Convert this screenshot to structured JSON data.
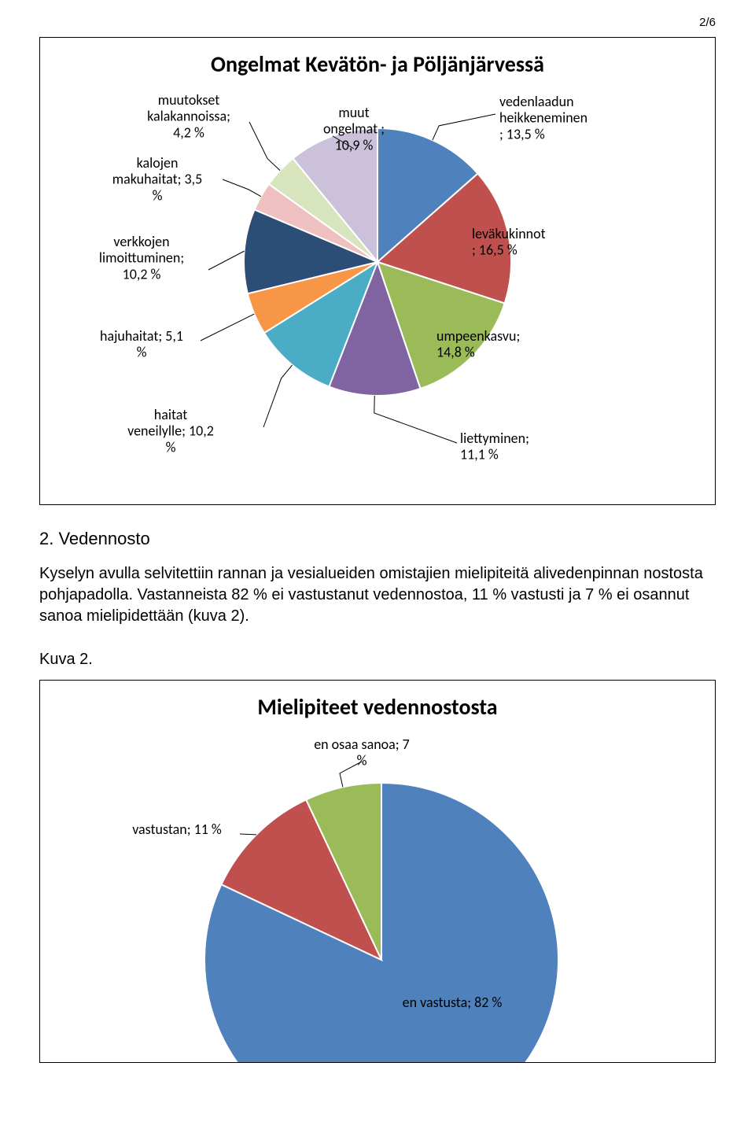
{
  "page_number": "2/6",
  "chart1": {
    "type": "pie",
    "title": "Ongelmat Kevätön- ja Pöljänjärvessä",
    "title_fontsize": 28,
    "label_fontsize": 18,
    "background_color": "#ffffff",
    "border_color": "#000000",
    "slices": [
      {
        "key": "vedenlaadun_heikkeneminen",
        "label_lines": [
          "vedenlaadun",
          "heikkeneminen",
          "; 13,5 %"
        ],
        "value": 13.5,
        "color": "#4f81bd"
      },
      {
        "key": "levakukinnot",
        "label_lines": [
          "leväkukinnot",
          "; 16,5 %"
        ],
        "value": 16.5,
        "color": "#c0504d"
      },
      {
        "key": "umpeenkasvu",
        "label_lines": [
          "umpeenkasvu;",
          "14,8 %"
        ],
        "value": 14.8,
        "color": "#9bbb59"
      },
      {
        "key": "liettyminen",
        "label_lines": [
          "liettyminen;",
          "11,1 %"
        ],
        "value": 11.1,
        "color": "#8064a2"
      },
      {
        "key": "haitat_veneilylle",
        "label_lines": [
          "haitat",
          "veneilylle; 10,2",
          "%"
        ],
        "value": 10.2,
        "color": "#4bacc6"
      },
      {
        "key": "hajuhaitat",
        "label_lines": [
          "hajuhaitat; 5,1",
          "%"
        ],
        "value": 5.1,
        "color": "#f79646"
      },
      {
        "key": "verkkojen_limoittuminen",
        "label_lines": [
          "verkkojen",
          "limoittuminen;",
          "10,2 %"
        ],
        "value": 10.2,
        "color": "#2c4d75"
      },
      {
        "key": "kalojen_makuhaitat",
        "label_lines": [
          "kalojen",
          "makuhaitat; 3,5",
          "%"
        ],
        "value": 3.5,
        "color": "#eec0bf"
      },
      {
        "key": "muutokset_kalakannoissa",
        "label_lines": [
          "muutokset",
          "kalakannoissa;",
          "4,2 %"
        ],
        "value": 4.2,
        "color": "#d7e4bd"
      },
      {
        "key": "muut_ongelmat",
        "label_lines": [
          "muut",
          "ongelmat ;",
          "10,9 %"
        ],
        "value": 10.9,
        "color": "#ccc1da"
      }
    ]
  },
  "section": {
    "heading": "2. Vedennosto",
    "paragraph": "Kyselyn avulla selvitettiin rannan ja vesialueiden omistajien mielipiteitä alivedenpinnan nostosta pohjapadolla. Vastanneista 82 % ei vastustanut vedennostoa, 11 % vastusti ja 7 % ei osannut sanoa mielipidettään (kuva 2).",
    "kuva_label": "Kuva 2."
  },
  "chart2": {
    "type": "pie",
    "title": "Mielipiteet vedennostosta",
    "title_fontsize": 28,
    "label_fontsize": 18,
    "background_color": "#ffffff",
    "border_color": "#000000",
    "slices": [
      {
        "key": "en_vastusta",
        "label_lines": [
          "en vastusta; 82 %"
        ],
        "value": 82,
        "color": "#4f81bd"
      },
      {
        "key": "vastustan",
        "label_lines": [
          "vastustan; 11 %"
        ],
        "value": 11,
        "color": "#c0504d"
      },
      {
        "key": "en_osaa_sanoa",
        "label_lines": [
          "en osaa sanoa; 7",
          "%"
        ],
        "value": 7,
        "color": "#9bbb59"
      }
    ]
  }
}
